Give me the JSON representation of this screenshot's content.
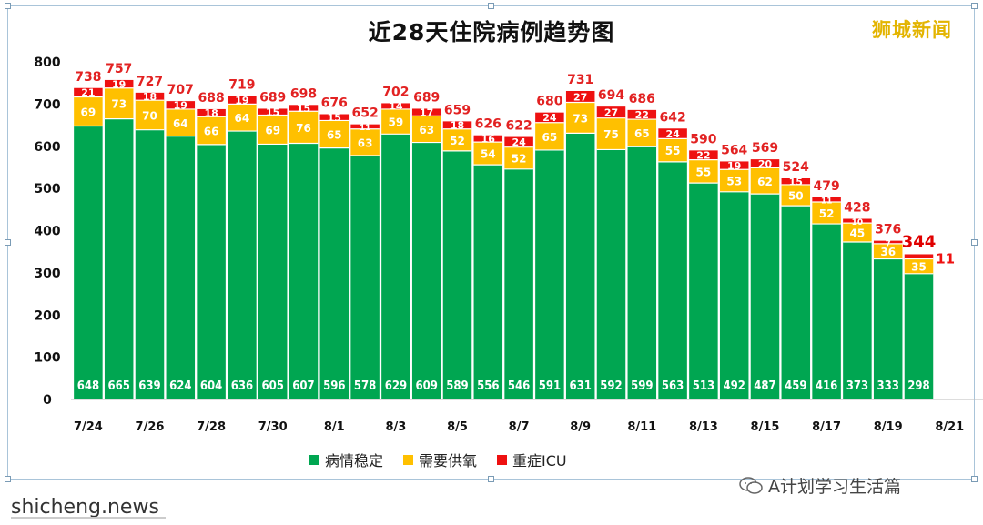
{
  "chart_data": {
    "type": "bar",
    "title": "近28天住院病例趋势图",
    "ylim": [
      0,
      800
    ],
    "yticks": [
      "0",
      "100",
      "200",
      "300",
      "400",
      "500",
      "600",
      "700",
      "800"
    ],
    "categories": [
      "7/24",
      "7/25",
      "7/26",
      "7/27",
      "7/28",
      "7/29",
      "7/30",
      "7/31",
      "8/1",
      "8/2",
      "8/3",
      "8/4",
      "8/5",
      "8/6",
      "8/7",
      "8/8",
      "8/9",
      "8/10",
      "8/11",
      "8/12",
      "8/13",
      "8/14",
      "8/15",
      "8/16",
      "8/17",
      "8/18",
      "8/19",
      "8/20"
    ],
    "xtick_labels": [
      "7/24",
      "7/26",
      "7/28",
      "7/30",
      "8/1",
      "8/3",
      "8/5",
      "8/7",
      "8/9",
      "8/11",
      "8/13",
      "8/15",
      "8/17",
      "8/19",
      "8/21"
    ],
    "series": [
      {
        "name": "病情稳定",
        "color": "#00a651",
        "values": [
          648,
          665,
          639,
          624,
          604,
          636,
          605,
          607,
          596,
          578,
          629,
          609,
          589,
          556,
          546,
          591,
          631,
          592,
          599,
          563,
          513,
          492,
          487,
          459,
          416,
          373,
          333,
          298
        ]
      },
      {
        "name": "需要供氧",
        "color": "#ffc000",
        "values": [
          69,
          73,
          70,
          64,
          66,
          64,
          69,
          76,
          65,
          63,
          59,
          63,
          52,
          54,
          52,
          65,
          73,
          75,
          65,
          55,
          55,
          53,
          62,
          50,
          52,
          45,
          36,
          35
        ]
      },
      {
        "name": "重症ICU",
        "color": "#ee1111",
        "values": [
          21,
          19,
          18,
          19,
          18,
          19,
          15,
          15,
          15,
          11,
          14,
          17,
          18,
          16,
          24,
          24,
          27,
          27,
          22,
          24,
          22,
          19,
          20,
          15,
          11,
          10,
          7,
          11
        ]
      }
    ],
    "totals": [
      738,
      757,
      727,
      707,
      688,
      719,
      689,
      698,
      676,
      652,
      702,
      689,
      659,
      626,
      622,
      680,
      731,
      694,
      686,
      642,
      590,
      564,
      569,
      524,
      479,
      428,
      376,
      344
    ],
    "grid": false,
    "legend_position": "bottom"
  },
  "brand": "狮城新闻",
  "watermark": "shicheng.news",
  "wechat_label": "A计划学习生活篇"
}
